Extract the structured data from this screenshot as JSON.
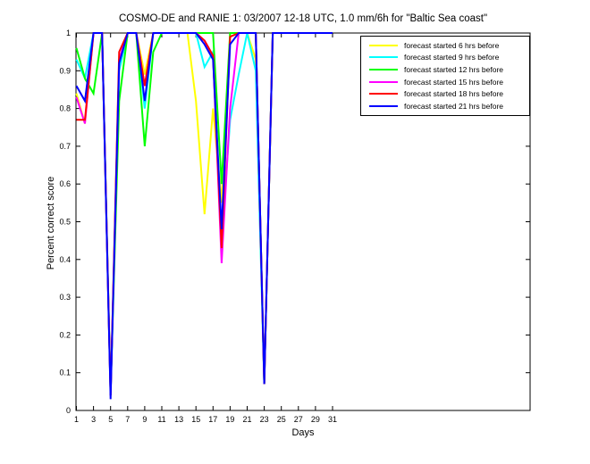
{
  "chart": {
    "title": "COSMO-DE and RANIE 1: 03/2007 12-18 UTC, 1.0 mm/6h for \"Baltic Sea coast\"",
    "xlabel": "Days",
    "ylabel": "Percent correct score"
  },
  "chart_data": {
    "type": "line",
    "title": "COSMO-DE and RANIE 1: 03/2007 12-18 UTC, 1.0 mm/6h for \"Baltic Sea coast\"",
    "xlabel": "Days",
    "ylabel": "Percent correct score",
    "x": [
      1,
      2,
      3,
      4,
      5,
      6,
      7,
      8,
      9,
      10,
      11,
      12,
      13,
      14,
      15,
      16,
      17,
      18,
      19,
      20,
      21,
      22,
      23,
      24,
      25,
      26,
      27,
      28,
      29,
      30,
      31
    ],
    "xtick_labels": [
      "1",
      "3",
      "5",
      "7",
      "9",
      "11",
      "13",
      "15",
      "17",
      "19",
      "21",
      "23",
      "25",
      "27",
      "29",
      "31"
    ],
    "xtick_values": [
      1,
      3,
      5,
      7,
      9,
      11,
      13,
      15,
      17,
      19,
      21,
      23,
      25,
      27,
      29,
      31
    ],
    "ytick_labels": [
      "0",
      "0.1",
      "0.2",
      "0.3",
      "0.4",
      "0.5",
      "0.6",
      "0.7",
      "0.8",
      "0.9",
      "1"
    ],
    "ytick_values": [
      0,
      0.1,
      0.2,
      0.3,
      0.4,
      0.5,
      0.6,
      0.7,
      0.8,
      0.9,
      1
    ],
    "ylim": [
      0,
      1
    ],
    "grid": false,
    "legend_position": "top-right",
    "axis_color": "#000000",
    "background_color": "#ffffff",
    "series": [
      {
        "name": "forecast started 6 hrs before",
        "color": "#ffff00",
        "values": [
          0.84,
          0.76,
          1,
          1,
          0.04,
          0.93,
          1,
          1,
          0.89,
          1,
          1,
          1,
          1,
          1,
          0.82,
          0.52,
          0.8,
          0.55,
          1,
          1,
          1,
          0.93,
          0.07,
          1,
          1,
          1,
          1,
          1,
          1,
          1,
          1
        ]
      },
      {
        "name": "forecast started 9 hrs before",
        "color": "#00ffff",
        "values": [
          0.93,
          0.88,
          1,
          1,
          0.04,
          0.9,
          1,
          1,
          0.8,
          1,
          1,
          1,
          1,
          1,
          1,
          0.91,
          0.95,
          0.45,
          0.77,
          0.89,
          1,
          0.9,
          0.07,
          1,
          1,
          1,
          1,
          1,
          1,
          1,
          1
        ]
      },
      {
        "name": "forecast started 12 hrs before",
        "color": "#00ff00",
        "values": [
          0.96,
          0.88,
          0.84,
          1,
          0.05,
          0.82,
          1,
          1,
          0.7,
          0.95,
          1,
          1,
          1,
          1,
          1,
          1,
          1,
          0.6,
          1,
          1,
          1,
          1,
          0.07,
          1,
          1,
          1,
          1,
          1,
          1,
          1,
          1
        ]
      },
      {
        "name": "forecast started 15 hrs before",
        "color": "#ff00ff",
        "values": [
          0.83,
          0.76,
          1,
          1,
          0.04,
          0.93,
          1,
          1,
          0.86,
          1,
          1,
          1,
          1,
          1,
          1,
          0.98,
          0.94,
          0.39,
          0.8,
          1,
          1,
          1,
          0.07,
          1,
          1,
          1,
          1,
          1,
          1,
          1,
          1
        ]
      },
      {
        "name": "forecast started 18 hrs before",
        "color": "#ff0000",
        "values": [
          0.77,
          0.77,
          1,
          1,
          0.04,
          0.95,
          1,
          1,
          0.86,
          1,
          1,
          1,
          1,
          1,
          1,
          0.98,
          0.94,
          0.43,
          0.99,
          1,
          1,
          1,
          0.07,
          1,
          1,
          1,
          1,
          1,
          1,
          1,
          1
        ]
      },
      {
        "name": "forecast started 21 hrs before",
        "color": "#0000ff",
        "values": [
          0.86,
          0.82,
          1,
          1,
          0.03,
          0.92,
          1,
          1,
          0.82,
          1,
          1,
          1,
          1,
          1,
          1,
          0.97,
          0.93,
          0.48,
          0.97,
          1,
          1,
          1,
          0.07,
          1,
          1,
          1,
          1,
          1,
          1,
          1,
          1
        ]
      }
    ]
  }
}
